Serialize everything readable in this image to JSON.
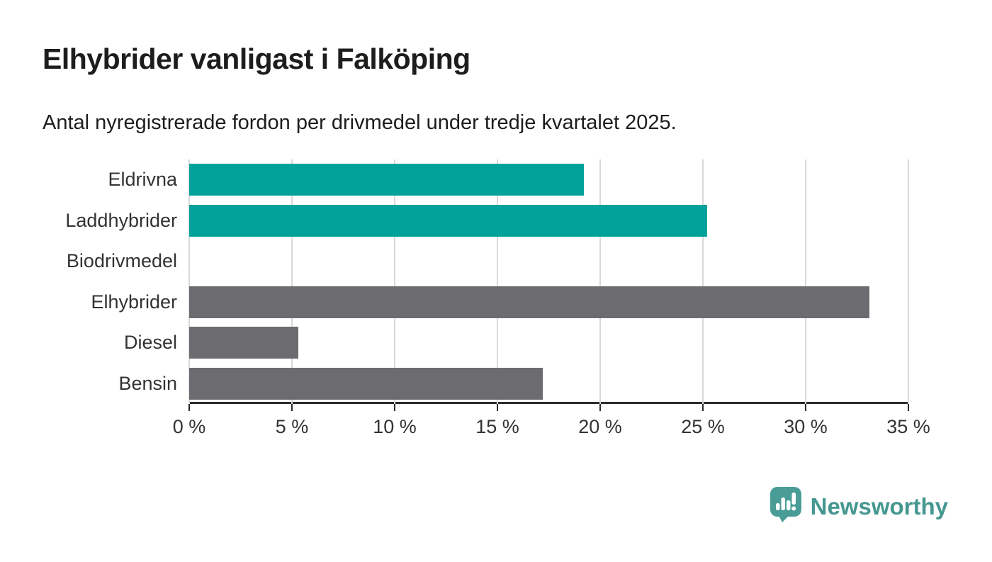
{
  "header": {
    "title": "Elhybrider vanligast i Falköping",
    "subtitle": "Antal nyregistrerade fordon per drivmedel under tredje kvartalet 2025."
  },
  "chart_data": {
    "type": "bar",
    "orientation": "horizontal",
    "title": "Elhybrider vanligast i Falköping",
    "subtitle": "Antal nyregistrerade fordon per drivmedel under tredje kvartalet 2025.",
    "categories": [
      "Eldrivna",
      "Laddhybrider",
      "Biodrivmedel",
      "Elhybrider",
      "Diesel",
      "Bensin"
    ],
    "values": [
      19.2,
      25.2,
      0,
      33.1,
      5.3,
      17.2
    ],
    "unit": "%",
    "bar_colors": [
      "#00a29a",
      "#00a29a",
      "#6c6c70",
      "#6c6c70",
      "#6c6c70",
      "#6c6c70"
    ],
    "xlabel": "",
    "ylabel": "",
    "xlim": [
      0,
      35
    ],
    "x_tick_values": [
      0,
      5,
      10,
      15,
      20,
      25,
      30,
      35
    ],
    "x_tick_labels": [
      "0 %",
      "5 %",
      "10 %",
      "15 %",
      "20 %",
      "25 %",
      "30 %",
      "35 %"
    ],
    "grid": "vertical-on",
    "legend": "none"
  },
  "colors": {
    "accent_teal": "#00a29a",
    "neutral_gray": "#6c6c70",
    "axis": "#2b2b2b",
    "gridline": "#d9d9d9",
    "text_dark": "#1d1d1b",
    "logo_teal": "#4a9d96",
    "logo_text_teal": "#45978f"
  },
  "branding": {
    "logo_text": "Newsworthy",
    "logo_icon": "speech-bubble-bar-chart-icon"
  }
}
